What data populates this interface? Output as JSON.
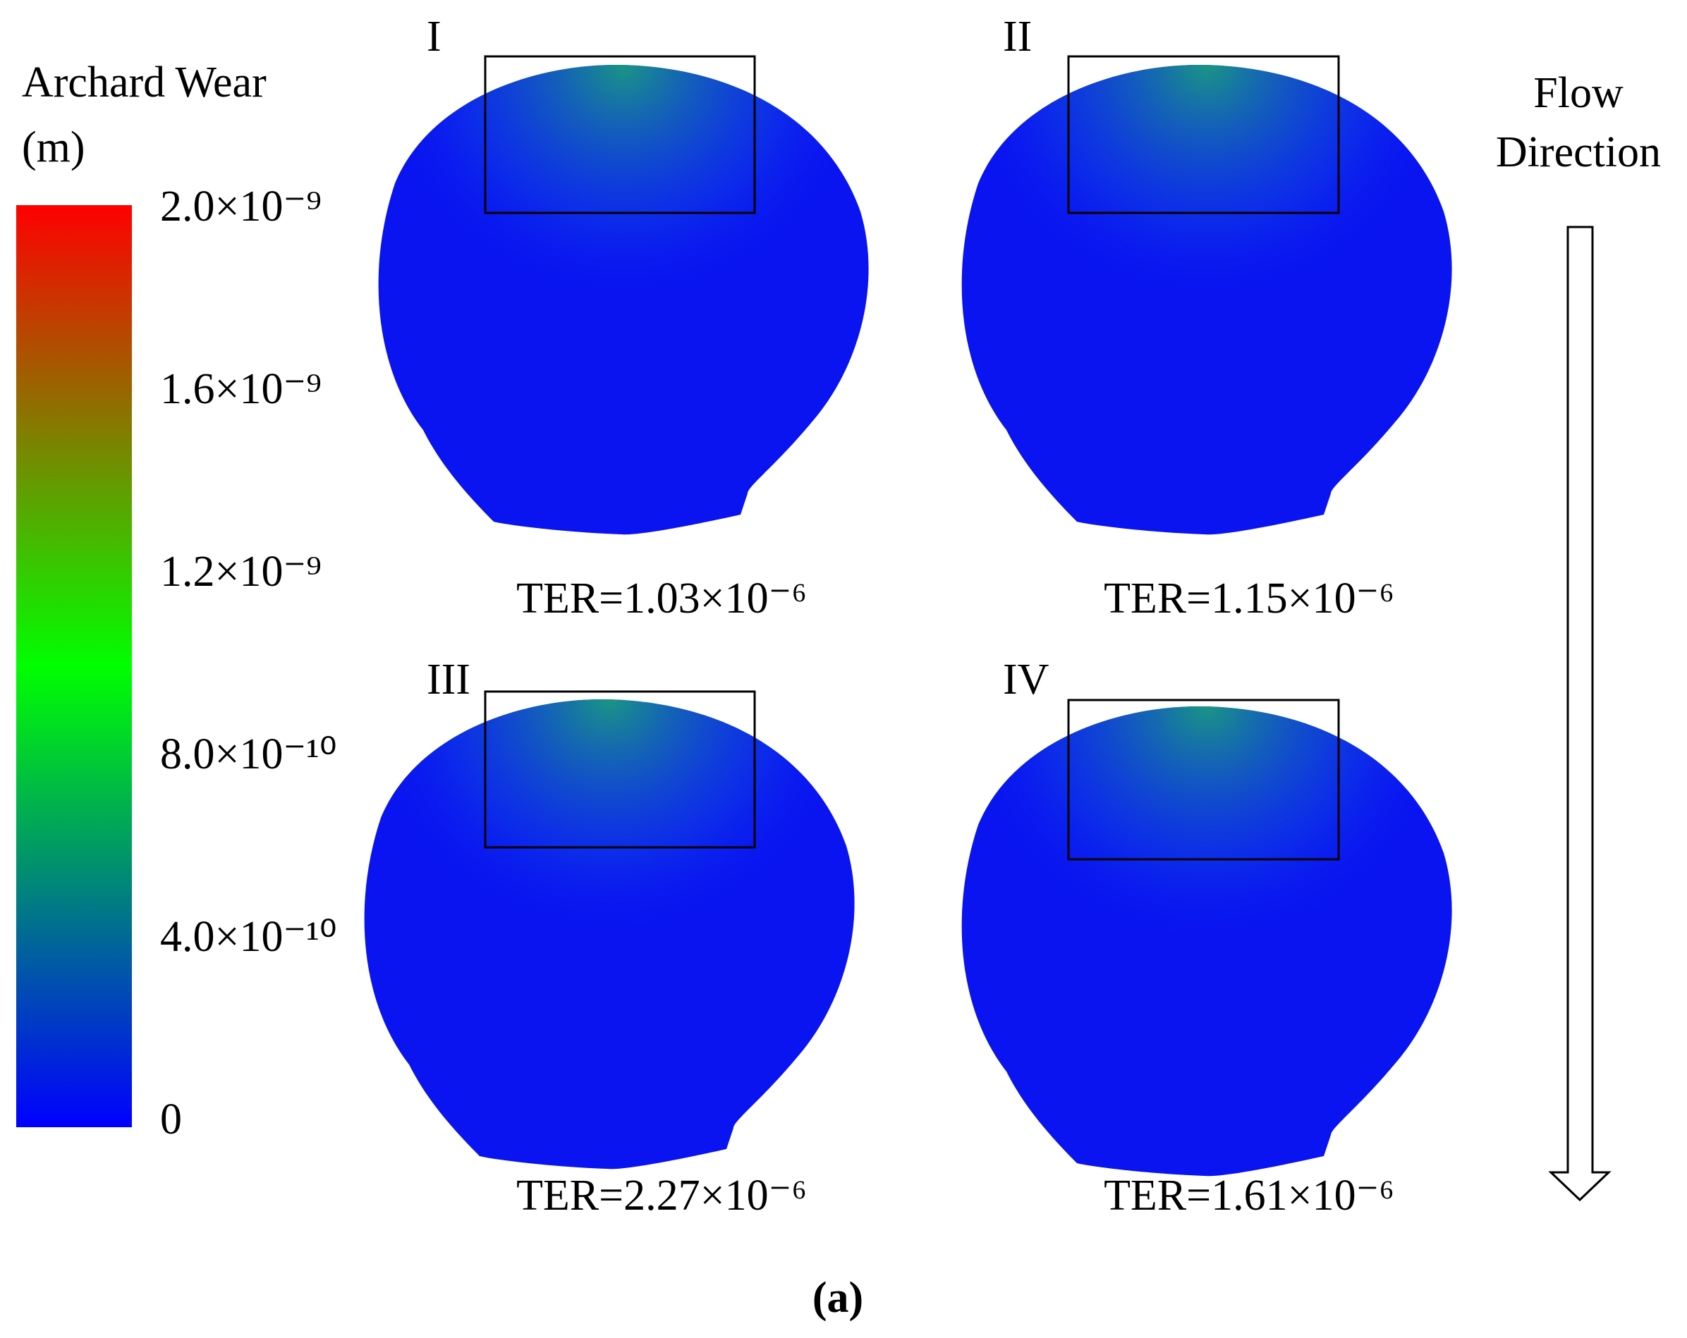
{
  "colorbar": {
    "title": "Archard Wear",
    "unit": "(m)",
    "tick_labels": [
      "2.0×10⁻⁹",
      "1.6×10⁻⁹",
      "1.2×10⁻⁹",
      "8.0×10⁻¹⁰",
      "4.0×10⁻¹⁰",
      "0"
    ]
  },
  "panels": [
    {
      "label": "I",
      "result": "TER=1.03×10⁻⁶"
    },
    {
      "label": "II",
      "result": "TER=1.15×10⁻⁶"
    },
    {
      "label": "III",
      "result": "TER=2.27×10⁻⁶"
    },
    {
      "label": "IV",
      "result": "TER=1.61×10⁻⁶"
    }
  ],
  "flow": {
    "line1": "Flow",
    "line2": "Direction"
  },
  "caption": "(a)"
}
